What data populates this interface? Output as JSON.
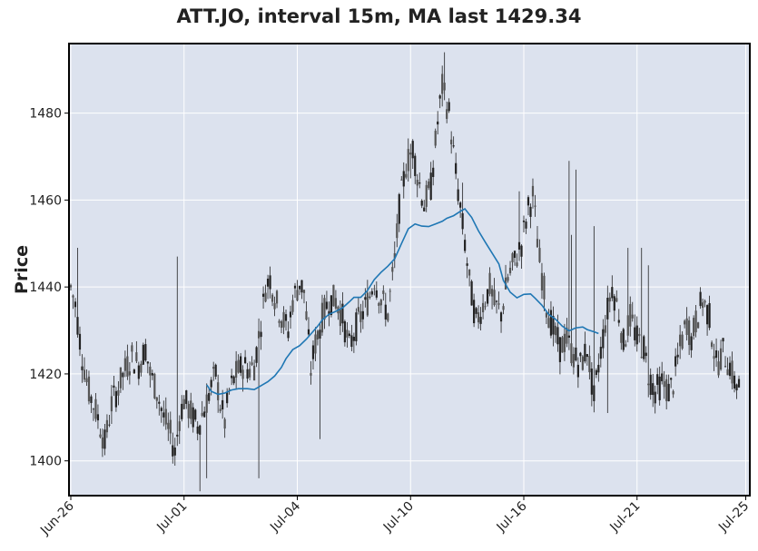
{
  "chart_data": {
    "type": "candlestick",
    "title": "ATT.JO, interval 15m, MA last 1429.34",
    "xlabel": "",
    "ylabel": "Price",
    "ylim": [
      1392,
      1496
    ],
    "yticks": [
      1400,
      1420,
      1440,
      1460,
      1480
    ],
    "xticks": [
      "Jun-26",
      "Jul-01",
      "Jul-04",
      "Jul-10",
      "Jul-16",
      "Jul-21",
      "Jul-25"
    ],
    "grid": true,
    "ma_last": 1429.34,
    "colors": {
      "background": "#dce2ee",
      "grid": "#ffffff",
      "candle": "#222222",
      "ma_line": "#1f77b4"
    },
    "close_path": [
      [
        0,
        1440
      ],
      [
        2,
        1436
      ],
      [
        5,
        1424
      ],
      [
        8,
        1416
      ],
      [
        12,
        1410
      ],
      [
        15,
        1404
      ],
      [
        18,
        1413
      ],
      [
        21,
        1417
      ],
      [
        24,
        1421
      ],
      [
        27,
        1424
      ],
      [
        30,
        1422
      ],
      [
        33,
        1426
      ],
      [
        35,
        1420
      ],
      [
        38,
        1416
      ],
      [
        41,
        1410
      ],
      [
        44,
        1406
      ],
      [
        46,
        1402
      ],
      [
        48,
        1410
      ],
      [
        50,
        1414
      ],
      [
        53,
        1411
      ],
      [
        56,
        1408
      ],
      [
        59,
        1412
      ],
      [
        62,
        1417
      ],
      [
        64,
        1420
      ],
      [
        66,
        1413
      ],
      [
        68,
        1409
      ],
      [
        70,
        1416
      ],
      [
        73,
        1420
      ],
      [
        76,
        1422
      ],
      [
        79,
        1421
      ],
      [
        81,
        1422
      ],
      [
        84,
        1432
      ],
      [
        86,
        1440
      ],
      [
        88,
        1442
      ],
      [
        91,
        1436
      ],
      [
        94,
        1432
      ],
      [
        96,
        1430
      ],
      [
        98,
        1437
      ],
      [
        101,
        1441
      ],
      [
        103,
        1439
      ],
      [
        106,
        1421
      ],
      [
        108,
        1427
      ],
      [
        111,
        1433
      ],
      [
        114,
        1437
      ],
      [
        117,
        1437
      ],
      [
        120,
        1433
      ],
      [
        123,
        1426
      ],
      [
        126,
        1431
      ],
      [
        129,
        1434
      ],
      [
        132,
        1438
      ],
      [
        134,
        1442
      ],
      [
        137,
        1437
      ],
      [
        140,
        1434
      ],
      [
        143,
        1446
      ],
      [
        145,
        1458
      ],
      [
        148,
        1468
      ],
      [
        151,
        1472
      ],
      [
        153,
        1466
      ],
      [
        156,
        1459
      ],
      [
        159,
        1463
      ],
      [
        162,
        1478
      ],
      [
        164,
        1486
      ],
      [
        167,
        1480
      ],
      [
        170,
        1466
      ],
      [
        172,
        1458
      ],
      [
        174,
        1450
      ],
      [
        176,
        1441
      ],
      [
        179,
        1432
      ],
      [
        182,
        1436
      ],
      [
        185,
        1440
      ],
      [
        187,
        1436
      ],
      [
        190,
        1434
      ],
      [
        193,
        1442
      ],
      [
        196,
        1446
      ],
      [
        199,
        1450
      ],
      [
        202,
        1458
      ],
      [
        204,
        1461
      ],
      [
        207,
        1446
      ],
      [
        210,
        1436
      ],
      [
        213,
        1430
      ],
      [
        216,
        1426
      ],
      [
        219,
        1428
      ],
      [
        222,
        1424
      ],
      [
        225,
        1422
      ],
      [
        228,
        1426
      ],
      [
        231,
        1414
      ],
      [
        233,
        1422
      ],
      [
        236,
        1432
      ],
      [
        239,
        1440
      ],
      [
        242,
        1434
      ],
      [
        244,
        1427
      ],
      [
        247,
        1433
      ],
      [
        250,
        1428
      ],
      [
        253,
        1426
      ],
      [
        255,
        1420
      ],
      [
        258,
        1416
      ],
      [
        261,
        1418
      ],
      [
        264,
        1416
      ],
      [
        266,
        1418
      ],
      [
        269,
        1426
      ],
      [
        272,
        1432
      ],
      [
        274,
        1428
      ],
      [
        277,
        1434
      ],
      [
        279,
        1437
      ],
      [
        282,
        1433
      ],
      [
        285,
        1422
      ],
      [
        288,
        1425
      ],
      [
        291,
        1422
      ],
      [
        293,
        1418
      ],
      [
        296,
        1417
      ]
    ],
    "ma_points": [
      [
        60,
        1417.5
      ],
      [
        62,
        1416
      ],
      [
        65,
        1415.3
      ],
      [
        68,
        1415.6
      ],
      [
        71,
        1416.3
      ],
      [
        74,
        1416.6
      ],
      [
        78,
        1416.6
      ],
      [
        81,
        1416.4
      ],
      [
        83,
        1417
      ],
      [
        87,
        1418.2
      ],
      [
        90,
        1419.5
      ],
      [
        93,
        1421.5
      ],
      [
        95,
        1423.5
      ],
      [
        98,
        1425.6
      ],
      [
        101,
        1426.5
      ],
      [
        104,
        1428
      ],
      [
        106,
        1429.2
      ],
      [
        109,
        1431
      ],
      [
        111,
        1432.4
      ],
      [
        114,
        1433.7
      ],
      [
        117,
        1434.4
      ],
      [
        120,
        1435.2
      ],
      [
        123,
        1436.6
      ],
      [
        125,
        1437.6
      ],
      [
        128,
        1437.6
      ],
      [
        131,
        1439.2
      ],
      [
        134,
        1441.7
      ],
      [
        137,
        1443.4
      ],
      [
        140,
        1444.8
      ],
      [
        143,
        1446.5
      ],
      [
        146,
        1450
      ],
      [
        149,
        1453.4
      ],
      [
        152,
        1454.5
      ],
      [
        155,
        1454
      ],
      [
        158,
        1453.9
      ],
      [
        161,
        1454.5
      ],
      [
        164,
        1455.1
      ],
      [
        166,
        1455.8
      ],
      [
        169,
        1456.4
      ],
      [
        172,
        1457.4
      ],
      [
        174,
        1458
      ],
      [
        177,
        1456
      ],
      [
        180,
        1452.9
      ],
      [
        183,
        1450.3
      ],
      [
        186,
        1447.8
      ],
      [
        189,
        1445.3
      ],
      [
        191,
        1441.5
      ],
      [
        194,
        1438.8
      ],
      [
        197,
        1437.5
      ],
      [
        200,
        1438.3
      ],
      [
        203,
        1438.4
      ],
      [
        205,
        1437.4
      ],
      [
        208,
        1435.8
      ],
      [
        211,
        1433.7
      ],
      [
        214,
        1432.6
      ],
      [
        217,
        1431
      ],
      [
        220,
        1429.9
      ],
      [
        223,
        1430.6
      ],
      [
        226,
        1430.8
      ],
      [
        228,
        1430.2
      ],
      [
        231,
        1429.7
      ],
      [
        233,
        1429.3
      ]
    ],
    "spikes": [
      [
        3,
        1449
      ],
      [
        47,
        1447
      ],
      [
        150,
        1465
      ],
      [
        165,
        1494
      ],
      [
        173,
        1464
      ],
      [
        198,
        1462
      ],
      [
        220,
        1469
      ],
      [
        221,
        1452
      ],
      [
        223,
        1467
      ],
      [
        231,
        1454
      ],
      [
        246,
        1449
      ],
      [
        252,
        1449
      ],
      [
        255,
        1445
      ],
      [
        57,
        1393
      ],
      [
        60,
        1396
      ],
      [
        83,
        1396
      ],
      [
        110,
        1405
      ],
      [
        237,
        1411
      ]
    ]
  }
}
